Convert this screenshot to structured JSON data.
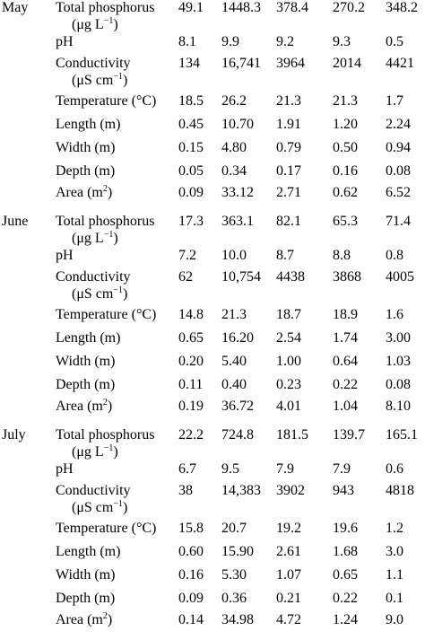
{
  "months": [
    {
      "name": "May",
      "rows": [
        {
          "label": "Total phosphorus",
          "label2": "(μg L",
          "label2_sup": "−1",
          "label2_after": ")",
          "values": [
            "49.1",
            "1448.3",
            "378.4",
            "270.2",
            "348.2"
          ]
        },
        {
          "label": "pH",
          "values": [
            "8.1",
            "9.9",
            "9.2",
            "9.3",
            "0.5"
          ]
        },
        {
          "label": "Conductivity",
          "label2": "(μS cm",
          "label2_sup": "−1",
          "label2_after": ")",
          "values": [
            "134",
            "16,741",
            "3964",
            "2014",
            "4421"
          ]
        },
        {
          "label": "Temperature (°C)",
          "values": [
            "18.5",
            "26.2",
            "21.3",
            "21.3",
            "1.7"
          ]
        },
        {
          "label": "Length (m)",
          "values": [
            "0.45",
            "10.70",
            "1.91",
            "1.20",
            "2.24"
          ]
        },
        {
          "label": "Width (m)",
          "values": [
            "0.15",
            "4.80",
            "0.79",
            "0.50",
            "0.94"
          ]
        },
        {
          "label": "Depth (m)",
          "values": [
            "0.05",
            "0.34",
            "0.17",
            "0.16",
            "0.08"
          ]
        },
        {
          "label": "Area (m",
          "label_sup": "2",
          "label_after": ")",
          "values": [
            "0.09",
            "33.12",
            "2.71",
            "0.62",
            "6.52"
          ]
        }
      ]
    },
    {
      "name": "June",
      "rows": [
        {
          "label": "Total phosphorus",
          "label2": "(μg L",
          "label2_sup": "−1",
          "label2_after": ")",
          "values": [
            "17.3",
            "363.1",
            "82.1",
            "65.3",
            "71.4"
          ]
        },
        {
          "label": "pH",
          "values": [
            "7.2",
            "10.0",
            "8.7",
            "8.8",
            "0.8"
          ]
        },
        {
          "label": "Conductivity",
          "label2": "(μS cm",
          "label2_sup": "−1",
          "label2_after": ")",
          "values": [
            "62",
            "10,754",
            "4438",
            "3868",
            "4005"
          ]
        },
        {
          "label": "Temperature (°C)",
          "values": [
            "14.8",
            "21.3",
            "18.7",
            "18.9",
            "1.6"
          ]
        },
        {
          "label": "Length (m)",
          "values": [
            "0.65",
            "16.20",
            "2.54",
            "1.74",
            "3.00"
          ]
        },
        {
          "label": "Width (m)",
          "values": [
            "0.20",
            "5.40",
            "1.00",
            "0.64",
            "1.03"
          ]
        },
        {
          "label": "Depth (m)",
          "values": [
            "0.11",
            "0.40",
            "0.23",
            "0.22",
            "0.08"
          ]
        },
        {
          "label": "Area (m",
          "label_sup": "2",
          "label_after": ")",
          "values": [
            "0.19",
            "36.72",
            "4.01",
            "1.04",
            "8.10"
          ]
        }
      ]
    },
    {
      "name": "July",
      "rows": [
        {
          "label": "Total phosphorus",
          "label2": "(μg L",
          "label2_sup": "−1",
          "label2_after": ")",
          "values": [
            "22.2",
            "724.8",
            "181.5",
            "139.7",
            "165.1"
          ]
        },
        {
          "label": "pH",
          "values": [
            "6.7",
            "9.5",
            "7.9",
            "7.9",
            "0.6"
          ]
        },
        {
          "label": "Conductivity",
          "label2": "(μS cm",
          "label2_sup": "−1",
          "label2_after": ")",
          "values": [
            "38",
            "14,383",
            "3902",
            "943",
            "4818"
          ]
        },
        {
          "label": "Temperature (°C)",
          "values": [
            "15.8",
            "20.7",
            "19.2",
            "19.6",
            "1.2"
          ]
        },
        {
          "label": "Length (m)",
          "values": [
            "0.60",
            "15.90",
            "2.61",
            "1.68",
            "3.0"
          ]
        },
        {
          "label": "Width (m)",
          "values": [
            "0.16",
            "5.30",
            "1.07",
            "0.65",
            "1.1"
          ]
        },
        {
          "label": "Depth (m)",
          "values": [
            "0.09",
            "0.36",
            "0.21",
            "0.22",
            "0.1"
          ]
        },
        {
          "label": "Area (m",
          "label_sup": "2",
          "label_after": ")",
          "values": [
            "0.14",
            "34.98",
            "4.72",
            "1.24",
            "9.0"
          ]
        }
      ]
    }
  ]
}
